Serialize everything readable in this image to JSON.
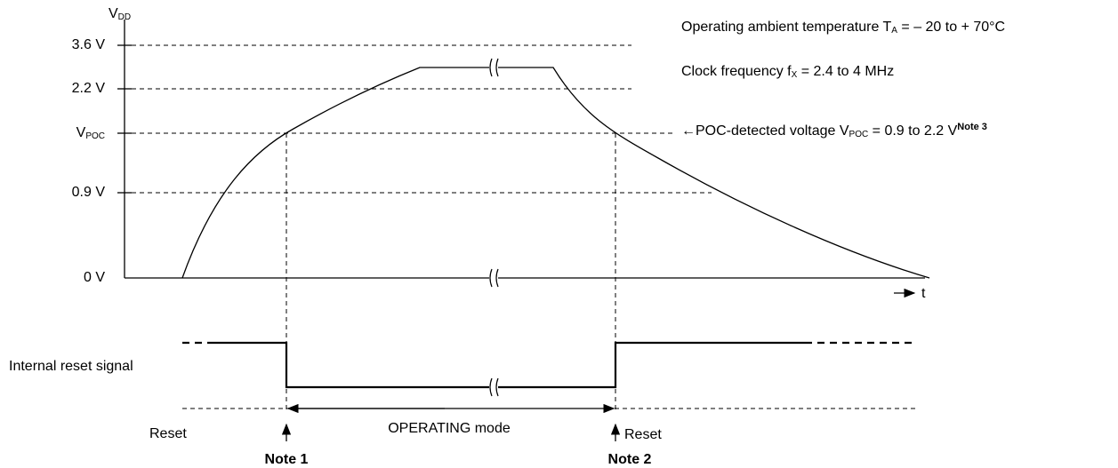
{
  "y_axis": {
    "label": {
      "main": "V",
      "sub": "DD"
    },
    "ticks": [
      "3.6 V",
      "2.2 V",
      {
        "main": "V",
        "sub": "POC"
      },
      "0.9 V",
      "0 V"
    ]
  },
  "x_axis": {
    "label": "t"
  },
  "conditions": [
    {
      "main": "Operating ambient temperature T",
      "sub": "A",
      "rest": " = – 20 to + 70°C"
    },
    {
      "main": "Clock frequency f",
      "sub": "X",
      "rest": " = 2.4 to 4 MHz"
    },
    {
      "main": "←POC-detected voltage V",
      "sub": "POC",
      "rest": " = 0.9 to 2.2 V",
      "note": "Note 3"
    }
  ],
  "signal_label": "Internal reset signal",
  "modes": {
    "left": "Reset",
    "middle": "OPERATING mode",
    "right": "Reset"
  },
  "notes": [
    "Note 1",
    "Note 2"
  ]
}
